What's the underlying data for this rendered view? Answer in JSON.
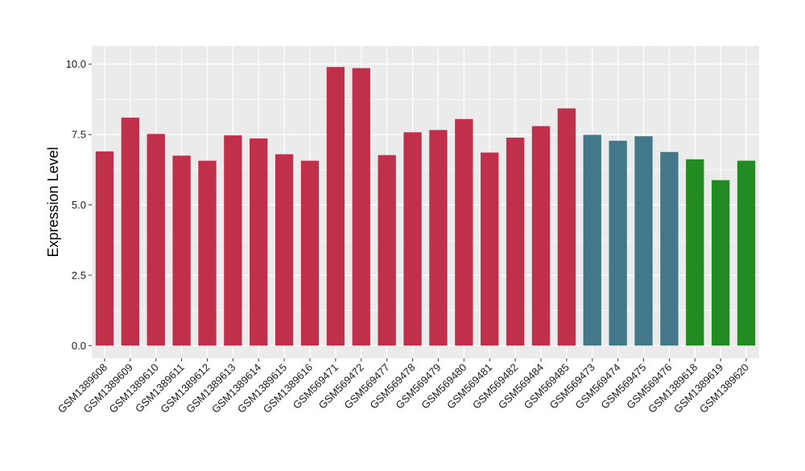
{
  "chart_data": {
    "type": "bar",
    "title": "",
    "xlabel": "",
    "ylabel": "Expression Level",
    "ylim": [
      -0.45,
      10.65
    ],
    "yticks": [
      0.0,
      2.5,
      5.0,
      7.5,
      10.0
    ],
    "ytick_labels": [
      "0.0",
      "2.5",
      "5.0",
      "7.5",
      "10.0"
    ],
    "grid": true,
    "legend": "none",
    "categories": [
      "GSM1389608",
      "GSM1389609",
      "GSM1389610",
      "GSM1389611",
      "GSM1389612",
      "GSM1389613",
      "GSM1389614",
      "GSM1389615",
      "GSM1389616",
      "GSM569471",
      "GSM569472",
      "GSM569477",
      "GSM569478",
      "GSM569479",
      "GSM569480",
      "GSM569481",
      "GSM569482",
      "GSM569484",
      "GSM569485",
      "GSM569473",
      "GSM569474",
      "GSM569475",
      "GSM569476",
      "GSM1389618",
      "GSM1389619",
      "GSM1389620"
    ],
    "values": [
      6.9,
      8.1,
      7.52,
      6.75,
      6.57,
      7.47,
      7.36,
      6.8,
      6.57,
      9.9,
      9.86,
      6.77,
      7.58,
      7.66,
      8.05,
      6.86,
      7.39,
      7.8,
      8.43,
      7.49,
      7.28,
      7.44,
      6.88,
      6.62,
      5.88,
      6.57
    ],
    "bar_colors": [
      "#C0304A",
      "#C0304A",
      "#C0304A",
      "#C0304A",
      "#C0304A",
      "#C0304A",
      "#C0304A",
      "#C0304A",
      "#C0304A",
      "#C0304A",
      "#C0304A",
      "#C0304A",
      "#C0304A",
      "#C0304A",
      "#C0304A",
      "#C0304A",
      "#C0304A",
      "#C0304A",
      "#C0304A",
      "#43788A",
      "#43788A",
      "#43788A",
      "#43788A",
      "#228B22",
      "#228B22",
      "#228B22"
    ],
    "panel_background": "#EBEBEB",
    "grid_color": "#FFFFFF"
  }
}
